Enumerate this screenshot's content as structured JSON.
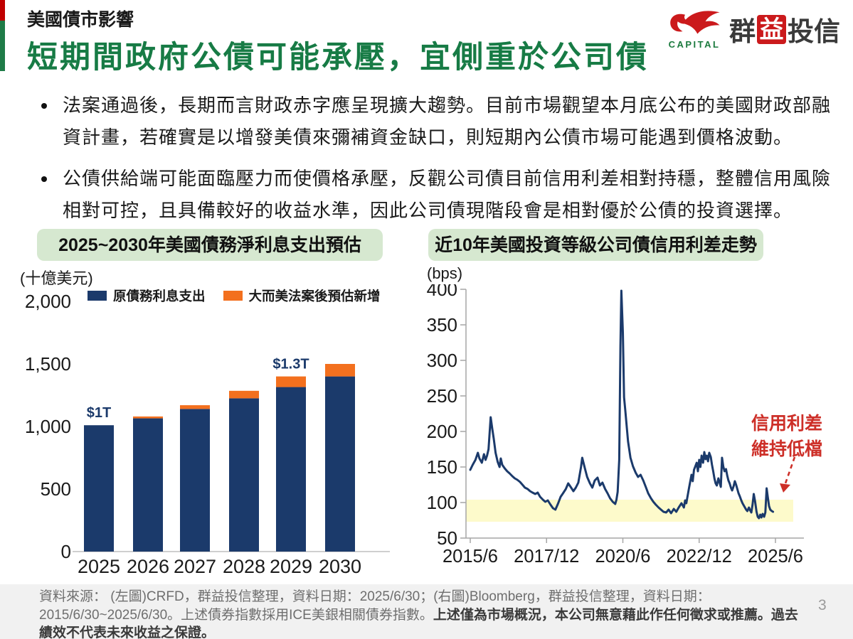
{
  "page": {
    "number": "3"
  },
  "header": {
    "kicker": "美國債市影響",
    "title": "短期間政府公債可能承壓，宜側重於公司債"
  },
  "logo": {
    "company_en": "CAPITAL",
    "company_zh_1": "群",
    "company_zh_box": "益",
    "company_zh_2": "投信"
  },
  "bullets": [
    {
      "text": "法案通過後，長期而言財政赤字應呈現擴大趨勢。目前市場觀望本月底公布的美國財政部融資計畫，若確實是以增發美債來彌補資金缺口，則短期內公債市場可能遇到價格波動。"
    },
    {
      "text": "公債供給端可能面臨壓力而使價格承壓，反觀公司債目前信用利差相對持穩，整體信用風險相對可控，且具備較好的收益水準，因此公司債現階段會是相對優於公債的投資選擇。"
    }
  ],
  "chart_data": [
    {
      "type": "bar",
      "title": "2025~2030年美國債務淨利息支出預估",
      "unit_label": "(十億美元)",
      "categories": [
        "2025",
        "2026",
        "2027",
        "2028",
        "2029",
        "2030"
      ],
      "series": [
        {
          "name": "原債務利息支出",
          "color": "#1B3A6B",
          "values": [
            1010,
            1065,
            1140,
            1225,
            1315,
            1400
          ]
        },
        {
          "name": "大而美法案後預估新增",
          "color": "#F3701E",
          "values": [
            0,
            15,
            30,
            60,
            85,
            100
          ]
        }
      ],
      "bar_labels": [
        "$1T",
        "",
        "",
        "",
        "$1.3T",
        ""
      ],
      "ylim": [
        0,
        2000
      ],
      "yticks": [
        0,
        500,
        1000,
        1500,
        2000
      ],
      "ytick_labels": [
        "0",
        "500",
        "1,000",
        "1,500",
        "2,000"
      ],
      "legend_position": "top",
      "grid": false
    },
    {
      "type": "line",
      "title": "近10年美國投資等級公司債信用利差走勢",
      "unit_label": "(bps)",
      "series_name": "美國投資等級公司債信用利差",
      "line_color": "#1B3A6B",
      "ylim": [
        50,
        400
      ],
      "yticks": [
        50,
        100,
        150,
        200,
        250,
        300,
        350,
        400
      ],
      "xtick_labels": [
        "2015/6",
        "2017/12",
        "2020/6",
        "2022/12",
        "2025/6"
      ],
      "x_unit": "years_since_2015_06",
      "highlight_band": {
        "from_bps": 73,
        "to_bps": 104,
        "color": "#FDFACB"
      },
      "annotation": {
        "line1": "信用利差",
        "line2": "維持低檔"
      },
      "grid": false,
      "points": [
        [
          0,
          146
        ],
        [
          0.08,
          153
        ],
        [
          0.17,
          160
        ],
        [
          0.25,
          170
        ],
        [
          0.3,
          162
        ],
        [
          0.38,
          156
        ],
        [
          0.45,
          168
        ],
        [
          0.5,
          160
        ],
        [
          0.55,
          166
        ],
        [
          0.6,
          175
        ],
        [
          0.67,
          220
        ],
        [
          0.72,
          204
        ],
        [
          0.77,
          190
        ],
        [
          0.83,
          170
        ],
        [
          0.9,
          157
        ],
        [
          0.96,
          150
        ],
        [
          1.0,
          162
        ],
        [
          1.05,
          153
        ],
        [
          1.13,
          148
        ],
        [
          1.21,
          144
        ],
        [
          1.29,
          141
        ],
        [
          1.38,
          137
        ],
        [
          1.46,
          134
        ],
        [
          1.54,
          132
        ],
        [
          1.63,
          129
        ],
        [
          1.71,
          125
        ],
        [
          1.79,
          121
        ],
        [
          1.88,
          119
        ],
        [
          1.96,
          116
        ],
        [
          2.04,
          114
        ],
        [
          2.13,
          112
        ],
        [
          2.21,
          114
        ],
        [
          2.29,
          108
        ],
        [
          2.38,
          104
        ],
        [
          2.46,
          101
        ],
        [
          2.54,
          103
        ],
        [
          2.63,
          97
        ],
        [
          2.71,
          92
        ],
        [
          2.79,
          90
        ],
        [
          2.88,
          99
        ],
        [
          2.96,
          108
        ],
        [
          3.04,
          113
        ],
        [
          3.13,
          119
        ],
        [
          3.21,
          127
        ],
        [
          3.29,
          122
        ],
        [
          3.38,
          116
        ],
        [
          3.46,
          121
        ],
        [
          3.54,
          128
        ],
        [
          3.63,
          150
        ],
        [
          3.67,
          163
        ],
        [
          3.75,
          149
        ],
        [
          3.83,
          136
        ],
        [
          3.92,
          127
        ],
        [
          4.0,
          121
        ],
        [
          4.08,
          131
        ],
        [
          4.17,
          135
        ],
        [
          4.25,
          124
        ],
        [
          4.33,
          128
        ],
        [
          4.42,
          119
        ],
        [
          4.5,
          113
        ],
        [
          4.58,
          106
        ],
        [
          4.67,
          101
        ],
        [
          4.75,
          98
        ],
        [
          4.79,
          104
        ],
        [
          4.83,
          115
        ],
        [
          4.88,
          160
        ],
        [
          4.92,
          320
        ],
        [
          4.95,
          398
        ],
        [
          5.0,
          340
        ],
        [
          5.04,
          248
        ],
        [
          5.08,
          230
        ],
        [
          5.13,
          205
        ],
        [
          5.17,
          186
        ],
        [
          5.25,
          163
        ],
        [
          5.33,
          151
        ],
        [
          5.42,
          142
        ],
        [
          5.5,
          136
        ],
        [
          5.58,
          139
        ],
        [
          5.67,
          131
        ],
        [
          5.75,
          122
        ],
        [
          5.83,
          113
        ],
        [
          5.92,
          106
        ],
        [
          6.0,
          101
        ],
        [
          6.08,
          97
        ],
        [
          6.17,
          93
        ],
        [
          6.25,
          90
        ],
        [
          6.33,
          87
        ],
        [
          6.42,
          86
        ],
        [
          6.5,
          90
        ],
        [
          6.58,
          85
        ],
        [
          6.67,
          91
        ],
        [
          6.75,
          87
        ],
        [
          6.83,
          93
        ],
        [
          6.92,
          99
        ],
        [
          7.0,
          93
        ],
        [
          7.04,
          103
        ],
        [
          7.08,
          99
        ],
        [
          7.17,
          121
        ],
        [
          7.25,
          139
        ],
        [
          7.29,
          130
        ],
        [
          7.33,
          146
        ],
        [
          7.42,
          156
        ],
        [
          7.46,
          144
        ],
        [
          7.5,
          160
        ],
        [
          7.54,
          150
        ],
        [
          7.58,
          166
        ],
        [
          7.63,
          156
        ],
        [
          7.67,
          171
        ],
        [
          7.71,
          161
        ],
        [
          7.75,
          166
        ],
        [
          7.79,
          158
        ],
        [
          7.83,
          170
        ],
        [
          7.88,
          164
        ],
        [
          7.92,
          153
        ],
        [
          7.96,
          144
        ],
        [
          8.0,
          134
        ],
        [
          8.04,
          127
        ],
        [
          8.08,
          124
        ],
        [
          8.13,
          134
        ],
        [
          8.17,
          128
        ],
        [
          8.21,
          122
        ],
        [
          8.25,
          163
        ],
        [
          8.29,
          151
        ],
        [
          8.33,
          144
        ],
        [
          8.38,
          147
        ],
        [
          8.42,
          138
        ],
        [
          8.46,
          131
        ],
        [
          8.5,
          127
        ],
        [
          8.54,
          121
        ],
        [
          8.58,
          117
        ],
        [
          8.63,
          123
        ],
        [
          8.67,
          130
        ],
        [
          8.71,
          125
        ],
        [
          8.75,
          119
        ],
        [
          8.79,
          113
        ],
        [
          8.83,
          109
        ],
        [
          8.88,
          103
        ],
        [
          8.92,
          99
        ],
        [
          8.96,
          96
        ],
        [
          9.0,
          93
        ],
        [
          9.04,
          90
        ],
        [
          9.08,
          88
        ],
        [
          9.13,
          93
        ],
        [
          9.17,
          89
        ],
        [
          9.21,
          86
        ],
        [
          9.25,
          97
        ],
        [
          9.29,
          112
        ],
        [
          9.33,
          102
        ],
        [
          9.38,
          87
        ],
        [
          9.42,
          80
        ],
        [
          9.46,
          78
        ],
        [
          9.5,
          83
        ],
        [
          9.54,
          79
        ],
        [
          9.58,
          84
        ],
        [
          9.63,
          80
        ],
        [
          9.67,
          86
        ],
        [
          9.71,
          120
        ],
        [
          9.75,
          107
        ],
        [
          9.79,
          95
        ],
        [
          9.83,
          90
        ],
        [
          9.88,
          88
        ],
        [
          9.92,
          87
        ]
      ]
    }
  ],
  "footer": {
    "source": "資料來源： (左圖)CRFD，群益投信整理，資料日期：2025/6/30；(右圖)Bloomberg，群益投信整理，資料日期：2015/6/30~2025/6/30。上述債券指數採用ICE美銀相關債券指數。",
    "disclaimer": "上述僅為市場概況，本公司無意藉此作任何徵求或推薦。過去績效不代表未來收益之保證。"
  },
  "colors": {
    "title_green": "#177B45",
    "pill_green": "#D6E8D0",
    "navy": "#1B3A6B",
    "orange": "#F3701E",
    "band_yellow": "#FDFACB",
    "annotation_red": "#CD2F28",
    "logo_red": "#CB1A1C",
    "accent_red": "#C00000",
    "accent_green": "#1E7B47",
    "axis_gray": "#A6A6A6"
  }
}
